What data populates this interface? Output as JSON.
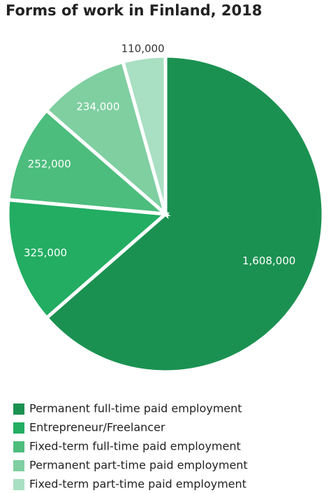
{
  "chart_data": {
    "type": "pie",
    "title": "Forms of work in Finland, 2018",
    "categories": [
      "Permanent full-time paid employment",
      "Entrepreneur/Freelancer",
      "Fixed-term full-time paid employment",
      "Permanent part-time paid employment",
      "Fixed-term part-time paid employment"
    ],
    "values": [
      1608000,
      325000,
      252000,
      234000,
      110000
    ],
    "value_labels": [
      "1,608,000",
      "325,000",
      "252,000",
      "234,000",
      "110,000"
    ],
    "colors": [
      "#1b9151",
      "#22ad62",
      "#4cbd7d",
      "#7fcfa1",
      "#a9dfc3"
    ]
  }
}
